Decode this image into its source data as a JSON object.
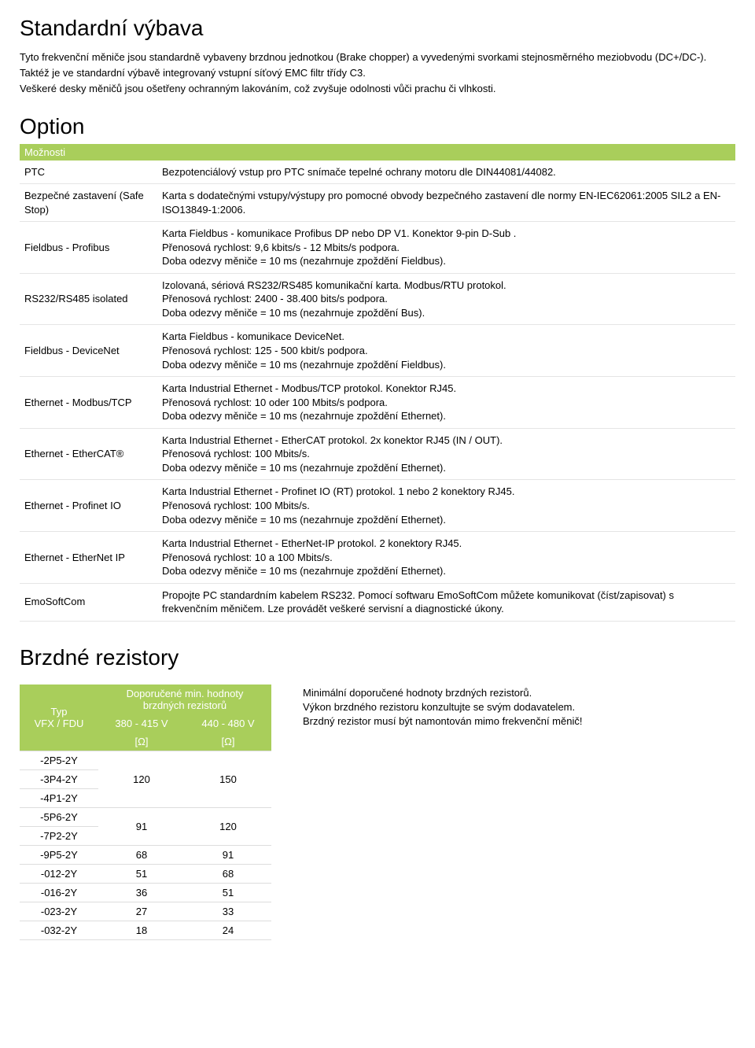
{
  "colors": {
    "header_bg": "#a9ce5b",
    "header_text": "#ffffff",
    "body_text": "#000000",
    "border": "#dddddd"
  },
  "standard": {
    "title": "Standardní výbava",
    "p1": "Tyto frekvenční měniče jsou standardně vybaveny brzdnou jednotkou (Brake chopper) a vyvedenými svorkami stejnosměrného meziobvodu (DC+/DC-).",
    "p2": "Taktéž je ve standardní výbavě integrovaný vstupní síťový EMC filtr třídy C3.",
    "p3": "Veškeré desky měničů jsou ošetřeny ochranným lakováním, což zvyšuje odolnosti vůči prachu či vlhkosti."
  },
  "option": {
    "title": "Option",
    "header": "Možnosti",
    "rows": [
      {
        "label": "PTC",
        "desc": "Bezpotenciálový vstup pro PTC snímače tepelné ochrany motoru dle DIN44081/44082."
      },
      {
        "label": "Bezpečné zastavení (Safe Stop)",
        "desc": "Karta s dodatečnými vstupy/výstupy pro pomocné obvody bezpečného zastavení dle normy EN-IEC62061:2005 SIL2 a EN-ISO13849-1:2006."
      },
      {
        "label": "Fieldbus - Profibus",
        "desc": "Karta Fieldbus - komunikace Profibus DP nebo DP V1. Konektor 9-pin D-Sub .\nPřenosová rychlost: 9,6 kbits/s - 12 Mbits/s podpora.\nDoba odezvy měniče = 10 ms (nezahrnuje zpoždění Fieldbus)."
      },
      {
        "label": "RS232/RS485 isolated",
        "desc": "Izolovaná, sériová RS232/RS485 komunikační karta. Modbus/RTU protokol.\nPřenosová rychlost: 2400 - 38.400 bits/s podpora.\nDoba odezvy měniče = 10 ms (nezahrnuje zpoždění Bus)."
      },
      {
        "label": "Fieldbus - DeviceNet",
        "desc": "Karta Fieldbus - komunikace DeviceNet.\nPřenosová rychlost: 125 - 500 kbit/s podpora.\nDoba odezvy měniče = 10 ms (nezahrnuje zpoždění Fieldbus)."
      },
      {
        "label": "Ethernet - Modbus/TCP",
        "desc": "Karta Industrial Ethernet - Modbus/TCP protokol. Konektor RJ45.\nPřenosová rychlost: 10 oder 100 Mbits/s podpora.\nDoba odezvy měniče = 10 ms (nezahrnuje zpoždění Ethernet)."
      },
      {
        "label": "Ethernet - EtherCAT®",
        "desc": "Karta Industrial Ethernet - EtherCAT protokol. 2x konektor RJ45 (IN / OUT).\nPřenosová rychlost: 100 Mbits/s.\nDoba odezvy měniče = 10 ms (nezahrnuje zpoždění Ethernet)."
      },
      {
        "label": "Ethernet - Profinet IO",
        "desc": "Karta Industrial Ethernet - Profinet IO (RT) protokol. 1 nebo 2 konektory RJ45.\nPřenosová rychlost: 100 Mbits/s.\nDoba odezvy měniče = 10 ms (nezahrnuje zpoždění Ethernet)."
      },
      {
        "label": "Ethernet - EtherNet IP",
        "desc": "Karta Industrial Ethernet - EtherNet-IP protokol. 2 konektory RJ45.\nPřenosová rychlost: 10 a 100 Mbits/s.\nDoba odezvy měniče = 10 ms (nezahrnuje zpoždění Ethernet)."
      },
      {
        "label": "EmoSoftCom",
        "desc": "Propojte PC standardním kabelem RS232. Pomocí softwaru EmoSoftCom můžete komunikovat (číst/zapisovat) s frekvenčním měničem. Lze provádět veškeré servisní a diagnostické úkony."
      }
    ]
  },
  "brzd": {
    "title": "Brzdné rezistory",
    "head": {
      "typ": "Typ\nVFX / FDU",
      "group": "Doporučené min. hodnoty brzdných rezistorů",
      "c1": "380 - 415 V",
      "c2": "440 - 480 V",
      "unit": "[Ω]"
    },
    "rows": [
      {
        "t": "-2P5-2Y",
        "v1": "",
        "v2": "",
        "span1": 0,
        "span2": 0
      },
      {
        "t": "-3P4-2Y",
        "v1": "120",
        "v2": "150",
        "span1": 3,
        "span2": 3
      },
      {
        "t": "-4P1-2Y",
        "v1": "",
        "v2": "",
        "span1": 0,
        "span2": 0
      },
      {
        "t": "-5P6-2Y",
        "v1": "91",
        "v2": "120",
        "span1": 2,
        "span2": 2
      },
      {
        "t": "-7P2-2Y",
        "v1": "",
        "v2": "",
        "span1": 0,
        "span2": 0
      },
      {
        "t": "-9P5-2Y",
        "v1": "68",
        "v2": "91",
        "span1": 1,
        "span2": 1
      },
      {
        "t": "-012-2Y",
        "v1": "51",
        "v2": "68",
        "span1": 1,
        "span2": 1
      },
      {
        "t": "-016-2Y",
        "v1": "36",
        "v2": "51",
        "span1": 1,
        "span2": 1
      },
      {
        "t": "-023-2Y",
        "v1": "27",
        "v2": "33",
        "span1": 1,
        "span2": 1
      },
      {
        "t": "-032-2Y",
        "v1": "18",
        "v2": "24",
        "span1": 1,
        "span2": 1
      }
    ],
    "side": {
      "l1": "Minimální doporučené hodnoty brzdných rezistorů.",
      "l2": "Výkon brzdného rezistoru konzultujte se svým dodavatelem.",
      "l3": "Brzdný rezistor musí být namontován mimo frekvenční měnič!"
    }
  }
}
